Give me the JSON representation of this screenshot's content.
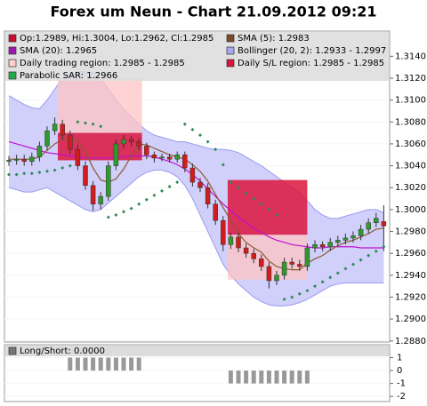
{
  "chart_data": [
    {
      "type": "candlestick",
      "title": "Forex um Neun - Chart 21.09.2012 09:21",
      "ylim": [
        1.2879,
        1.3163
      ],
      "yticks": [
        {
          "value": 1.288,
          "label": "1.2880"
        },
        {
          "value": 1.29,
          "label": "1.2900"
        },
        {
          "value": 1.292,
          "label": "1.2920"
        },
        {
          "value": 1.294,
          "label": "1.2940"
        },
        {
          "value": 1.296,
          "label": "1.2960"
        },
        {
          "value": 1.298,
          "label": "1.2980"
        },
        {
          "value": 1.3,
          "label": "1.3000"
        },
        {
          "value": 1.302,
          "label": "1.3020"
        },
        {
          "value": 1.304,
          "label": "1.3040"
        },
        {
          "value": 1.306,
          "label": "1.3060"
        },
        {
          "value": 1.308,
          "label": "1.3080"
        },
        {
          "value": 1.31,
          "label": "1.3100"
        },
        {
          "value": 1.312,
          "label": "1.3120"
        },
        {
          "value": 1.314,
          "label": "1.3140"
        }
      ],
      "grid": true,
      "up_color": "#2e9a2e",
      "down_color": "#d01c1c",
      "legend": [
        {
          "text": "Op:1.2989, Hi:1.3004, Lo:1.2962, Cl:1.2985",
          "color": "#c8102e"
        },
        {
          "text": "SMA (5): 1.2983",
          "color": "#7a4a2a"
        },
        {
          "text": "SMA (20): 1.2965",
          "color": "#9a1ab0"
        },
        {
          "text": "Bollinger (20, 2): 1.2933 - 1.2997",
          "color": "#a8a8f0"
        },
        {
          "text": "Daily trading region: 1.2985 - 1.2985",
          "color": "#ffd0d0"
        },
        {
          "text": "Daily S/L region: 1.2985 - 1.2985",
          "color": "#dc143c"
        },
        {
          "text": "Parabolic SAR: 1.2966",
          "color": "#22aa44"
        }
      ],
      "open": [
        1.3044,
        1.3045,
        1.3046,
        1.3044,
        1.3048,
        1.3058,
        1.3072,
        1.3078,
        1.3068,
        1.3055,
        1.304,
        1.3022,
        1.3005,
        1.3012,
        1.304,
        1.306,
        1.3064,
        1.3062,
        1.3058,
        1.305,
        1.3047,
        1.3048,
        1.3046,
        1.305,
        1.3038,
        1.3025,
        1.302,
        1.3005,
        1.299,
        1.2968,
        1.2975,
        1.2965,
        1.296,
        1.2955,
        1.2948,
        1.2935,
        1.294,
        1.2952,
        1.295,
        1.2948,
        1.2965,
        1.2968,
        1.2966,
        1.297,
        1.2972,
        1.2974,
        1.2976,
        1.2982,
        1.2988,
        1.2989
      ],
      "high": [
        1.3049,
        1.305,
        1.305,
        1.3052,
        1.3062,
        1.3076,
        1.3084,
        1.3082,
        1.3072,
        1.3059,
        1.3044,
        1.3026,
        1.3016,
        1.3044,
        1.3064,
        1.3068,
        1.3067,
        1.3065,
        1.3061,
        1.3053,
        1.3051,
        1.3051,
        1.3053,
        1.3053,
        1.3042,
        1.3029,
        1.3024,
        1.3009,
        1.2994,
        1.2979,
        1.2979,
        1.2969,
        1.2964,
        1.2959,
        1.2952,
        1.2944,
        1.2956,
        1.2956,
        1.2954,
        1.2969,
        1.2972,
        1.2971,
        1.2974,
        1.2976,
        1.2978,
        1.298,
        1.2986,
        1.2992,
        1.2997,
        1.3004
      ],
      "low": [
        1.304,
        1.3041,
        1.304,
        1.304,
        1.3044,
        1.3054,
        1.3068,
        1.3064,
        1.3051,
        1.3036,
        1.3018,
        1.2999,
        1.3,
        1.3008,
        1.3036,
        1.3056,
        1.3058,
        1.3054,
        1.3046,
        1.3043,
        1.3044,
        1.3043,
        1.3043,
        1.3034,
        1.3021,
        1.3016,
        1.3001,
        1.2986,
        1.2962,
        1.2964,
        1.2961,
        1.2956,
        1.2951,
        1.2944,
        1.2928,
        1.2931,
        1.2936,
        1.2946,
        1.2944,
        1.2944,
        1.2961,
        1.2962,
        1.2962,
        1.2966,
        1.2968,
        1.297,
        1.2972,
        1.2978,
        1.2984,
        1.2962
      ],
      "close": [
        1.3045,
        1.3046,
        1.3044,
        1.3048,
        1.3058,
        1.3072,
        1.3078,
        1.3068,
        1.3055,
        1.304,
        1.3022,
        1.3005,
        1.3012,
        1.304,
        1.306,
        1.3064,
        1.3062,
        1.3058,
        1.305,
        1.3047,
        1.3048,
        1.3046,
        1.305,
        1.3038,
        1.3025,
        1.302,
        1.3005,
        1.299,
        1.2968,
        1.2975,
        1.2965,
        1.296,
        1.2955,
        1.2948,
        1.2935,
        1.294,
        1.2952,
        1.295,
        1.2948,
        1.2965,
        1.2968,
        1.2966,
        1.297,
        1.2972,
        1.2974,
        1.2976,
        1.2982,
        1.2988,
        1.2992,
        1.2985
      ],
      "bollinger": {
        "color": "#9a9af0",
        "fill": "#c8c8fa",
        "upper": [
          1.3104,
          1.31,
          1.3096,
          1.3093,
          1.3092,
          1.31,
          1.311,
          1.312,
          1.3124,
          1.3126,
          1.3126,
          1.3125,
          1.312,
          1.311,
          1.31,
          1.3092,
          1.3085,
          1.3078,
          1.3072,
          1.3068,
          1.3066,
          1.3064,
          1.3062,
          1.3062,
          1.306,
          1.3058,
          1.3056,
          1.3055,
          1.3055,
          1.3054,
          1.3052,
          1.3048,
          1.3044,
          1.304,
          1.3035,
          1.303,
          1.3025,
          1.302,
          1.3015,
          1.3008,
          1.3,
          1.2995,
          1.2992,
          1.2992,
          1.2994,
          1.2996,
          1.2998,
          1.3,
          1.3,
          1.2997
        ],
        "lower": [
          1.302,
          1.3018,
          1.3016,
          1.3016,
          1.3018,
          1.302,
          1.3016,
          1.3012,
          1.3008,
          1.3004,
          1.3,
          1.2998,
          1.3,
          1.3006,
          1.3012,
          1.3018,
          1.3024,
          1.303,
          1.3034,
          1.3036,
          1.3036,
          1.3034,
          1.303,
          1.3022,
          1.301,
          1.2995,
          1.298,
          1.2965,
          1.295,
          1.294,
          1.2932,
          1.2926,
          1.292,
          1.2916,
          1.2913,
          1.2912,
          1.2912,
          1.2913,
          1.2915,
          1.2918,
          1.2922,
          1.2926,
          1.293,
          1.2932,
          1.2933,
          1.2933,
          1.2933,
          1.2933,
          1.2933,
          1.2933
        ]
      },
      "sma20": {
        "color": "#c010d0",
        "values": [
          1.3062,
          1.306,
          1.3058,
          1.3056,
          1.3054,
          1.3052,
          1.3051,
          1.305,
          1.3049,
          1.3048,
          1.3047,
          1.3047,
          1.3047,
          1.3047,
          1.3048,
          1.3048,
          1.3049,
          1.3049,
          1.3049,
          1.3048,
          1.3046,
          1.3044,
          1.3041,
          1.3037,
          1.3032,
          1.3026,
          1.3019,
          1.3012,
          1.3005,
          1.2999,
          1.2993,
          1.2988,
          1.2983,
          1.2979,
          1.2975,
          1.2972,
          1.297,
          1.2968,
          1.2967,
          1.2966,
          1.2965,
          1.2965,
          1.2966,
          1.2966,
          1.2966,
          1.2966,
          1.2965,
          1.2965,
          1.2965,
          1.2965
        ]
      },
      "sma5": {
        "color": "#8b5a2b",
        "values": [
          1.3046,
          1.3046,
          1.3046,
          1.3046,
          1.3048,
          1.3054,
          1.306,
          1.3064,
          1.3066,
          1.3063,
          1.3053,
          1.3038,
          1.3027,
          1.3025,
          1.3028,
          1.3037,
          1.3049,
          1.306,
          1.3059,
          1.3056,
          1.3053,
          1.305,
          1.3048,
          1.3046,
          1.3041,
          1.3035,
          1.3026,
          1.3014,
          1.3002,
          1.299,
          1.2978,
          1.297,
          1.2965,
          1.2961,
          1.2953,
          1.2948,
          1.2946,
          1.2945,
          1.2945,
          1.2951,
          1.2955,
          1.2958,
          1.2963,
          1.2967,
          1.297,
          1.2972,
          1.2975,
          1.2978,
          1.2982,
          1.2983
        ]
      },
      "sar": {
        "color": "#2e8b57",
        "values": [
          1.3032,
          1.3032,
          1.3033,
          1.3033,
          1.3034,
          1.3035,
          1.3036,
          1.3038,
          1.304,
          1.308,
          1.3079,
          1.3078,
          1.3076,
          1.2993,
          1.2995,
          1.2998,
          1.3001,
          1.3005,
          1.3009,
          1.3013,
          1.3017,
          1.3021,
          1.3025,
          1.3078,
          1.3073,
          1.3068,
          1.3062,
          1.3055,
          1.3041,
          1.3025,
          1.302,
          1.3015,
          1.301,
          1.3005,
          1.3,
          1.2995,
          1.2918,
          1.292,
          1.2923,
          1.2926,
          1.293,
          1.2934,
          1.2938,
          1.2942,
          1.2946,
          1.295,
          1.2954,
          1.2958,
          1.2962,
          1.2966
        ]
      },
      "trading_regions": {
        "color": "#ffc4c4",
        "from": [
          6.4,
          28.6
        ],
        "to": [
          17.4,
          39.0
        ],
        "low": [
          1.307,
          1.2936
        ],
        "high": [
          1.312,
          1.2977
        ]
      },
      "sl_regions": {
        "color": "#dc143c",
        "from": [
          6.4,
          28.6
        ],
        "to": [
          17.4,
          39.0
        ],
        "low": [
          1.3045,
          1.2977
        ],
        "high": [
          1.307,
          1.3027
        ]
      }
    },
    {
      "type": "bar",
      "label": "Long/Short: 0.0000",
      "color": "#999999",
      "ylim": [
        -2.4,
        2.0
      ],
      "yticks": [
        1,
        0,
        -1,
        -2
      ],
      "values": [
        0,
        0,
        0,
        0,
        0,
        0,
        0,
        0,
        1,
        1,
        1,
        1,
        1,
        1,
        1,
        1,
        1,
        1,
        0,
        0,
        0,
        0,
        0,
        0,
        0,
        0,
        0,
        0,
        0,
        -1,
        -1,
        -1,
        -1,
        -1,
        -1,
        -1,
        -1,
        -1,
        -1,
        -1,
        0,
        0,
        0,
        0,
        0,
        0,
        0,
        0,
        0,
        0
      ]
    }
  ]
}
